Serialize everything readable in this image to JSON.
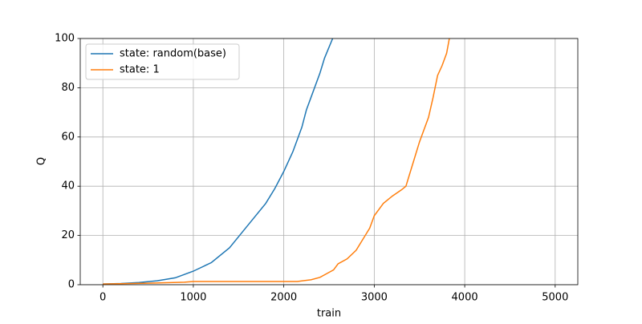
{
  "chart_data": {
    "type": "line",
    "xlabel": "train",
    "ylabel": "Q",
    "xlim": [
      -250,
      5250
    ],
    "ylim": [
      0,
      100
    ],
    "xticks": [
      0,
      1000,
      2000,
      3000,
      4000,
      5000
    ],
    "yticks": [
      0,
      20,
      40,
      60,
      80,
      100
    ],
    "grid": true,
    "legend": "upper-left",
    "series": [
      {
        "name": "state: random(base)",
        "color": "#1f77b4",
        "x": [
          0,
          200,
          400,
          600,
          800,
          1000,
          1200,
          1400,
          1600,
          1800,
          1900,
          2000,
          2100,
          2200,
          2250,
          2300,
          2400,
          2450,
          2540
        ],
        "values": [
          0.3,
          0.5,
          0.9,
          1.6,
          2.8,
          5.5,
          9,
          15,
          24,
          33,
          39,
          46,
          54,
          64,
          71,
          76,
          86,
          92,
          100
        ]
      },
      {
        "name": "state: 1",
        "color": "#ff7f0e",
        "x": [
          0,
          500,
          900,
          1000,
          2150,
          2300,
          2400,
          2500,
          2550,
          2600,
          2700,
          2800,
          2900,
          2950,
          3000,
          3100,
          3200,
          3300,
          3350,
          3400,
          3450,
          3500,
          3600,
          3650,
          3700,
          3750,
          3800,
          3830
        ],
        "values": [
          0.3,
          0.6,
          1,
          1.3,
          1.3,
          2,
          3,
          5,
          6,
          8.5,
          10.5,
          14,
          20,
          23,
          28,
          33,
          36,
          38.5,
          40,
          46,
          52,
          58,
          68,
          76,
          85,
          89,
          94,
          100
        ]
      }
    ]
  }
}
